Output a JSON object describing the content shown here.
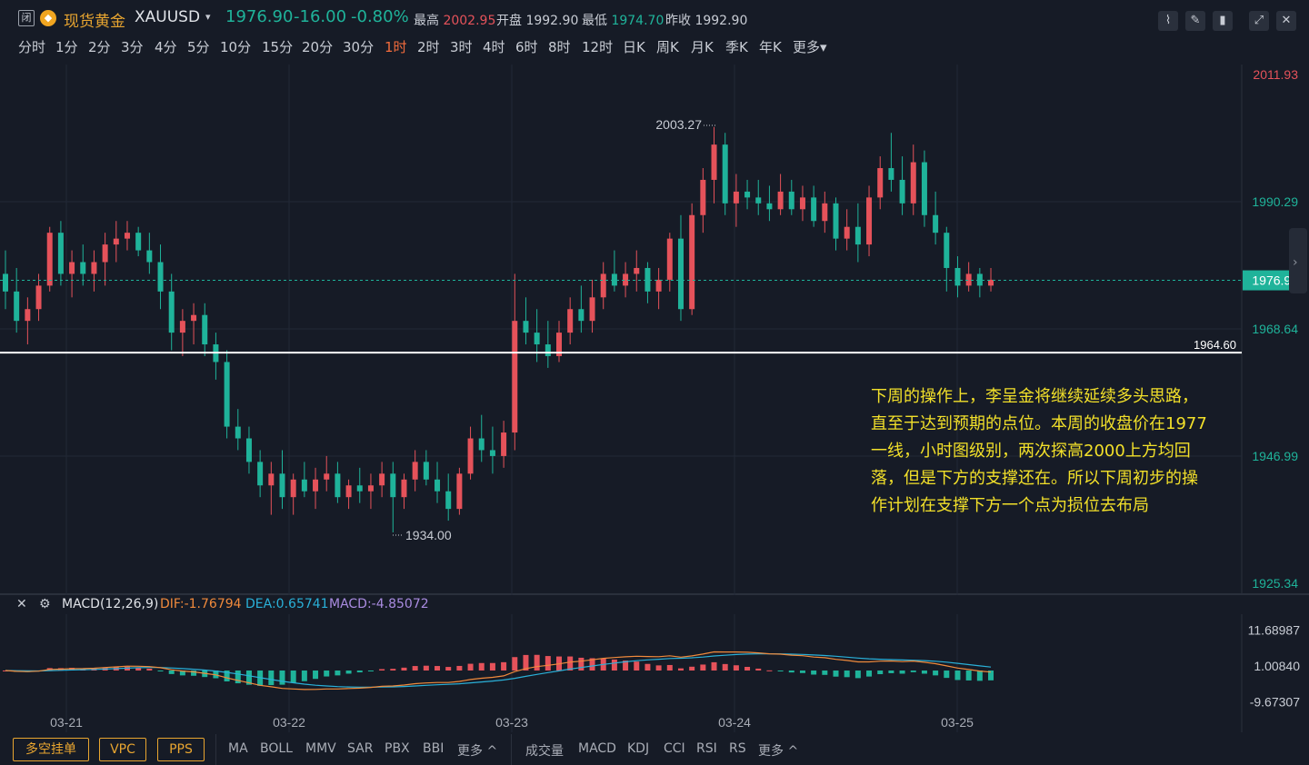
{
  "header": {
    "closed_tag": "闭",
    "symbol_name": "现货黄金",
    "symbol_code": "XAUUSD",
    "last_price": "1976.90",
    "change": "-16.00",
    "change_pct": "-0.80%",
    "high_label": "最高",
    "high_value": "2002.95",
    "open_label": "开盘",
    "open_value": "1992.90",
    "low_label": "最低",
    "low_value": "1974.70",
    "prev_close_label": "昨收",
    "prev_close_value": "1992.90"
  },
  "periods": [
    "分时",
    "1分",
    "2分",
    "3分",
    "4分",
    "5分",
    "10分",
    "15分",
    "20分",
    "30分",
    "1时",
    "2时",
    "3时",
    "4时",
    "6时",
    "8时",
    "12时",
    "日K",
    "周K",
    "月K",
    "季K",
    "年K",
    "更多"
  ],
  "active_period": "1时",
  "price_axis": [
    "2011.93",
    "1990.29",
    "1976.90",
    "1968.64",
    "1946.99",
    "1925.34"
  ],
  "support_label": "1964.60",
  "high_marker": "2003.27",
  "low_marker": "1934.00",
  "annotation": "下周的操作上，李呈金将继续延续多头思路，直至于达到预期的点位。本周的收盘价在1977一线，小时图级别，两次探高2000上方均回落，但是下方的支撑还在。所以下周初步的操作计划在支撑下方一个点为损位去布局",
  "macd": {
    "title": "MACD(12,26,9)",
    "dif": "DIF:-1.76794",
    "dea": "DEA:0.65741",
    "macd": "MACD:-4.85072",
    "axis": [
      "11.68987",
      "1.00840",
      "-9.67307"
    ]
  },
  "date_labels": [
    "03-21",
    "03-22",
    "03-23",
    "03-24",
    "03-25"
  ],
  "bottom": {
    "boxes": [
      "多空挂单",
      "VPC",
      "PPS"
    ],
    "main_indicators": [
      "MA",
      "BOLL",
      "MMV",
      "SAR",
      "PBX",
      "BBI",
      "更多 ^"
    ],
    "sub_indicators": [
      "成交量",
      "MACD",
      "KDJ",
      "CCI",
      "RSI",
      "RS",
      "更多 ^"
    ]
  },
  "colors": {
    "up": "#e5525a",
    "down": "#1fb39a",
    "accent": "#e8a530",
    "annotation": "#f2e02a",
    "dif_line": "#f08a3c",
    "dea_line": "#2ab0d8"
  },
  "chart_data": {
    "type": "candlestick",
    "ylim": [
      1925.34,
      2011.93
    ],
    "candles": [
      [
        1978,
        1982,
        1972,
        1975
      ],
      [
        1975,
        1979,
        1968,
        1970
      ],
      [
        1970,
        1974,
        1966,
        1972
      ],
      [
        1972,
        1978,
        1970,
        1976
      ],
      [
        1976,
        1986,
        1975,
        1985
      ],
      [
        1985,
        1987,
        1976,
        1978
      ],
      [
        1978,
        1982,
        1974,
        1980
      ],
      [
        1980,
        1983,
        1976,
        1978
      ],
      [
        1978,
        1982,
        1975,
        1980
      ],
      [
        1980,
        1985,
        1976,
        1983
      ],
      [
        1983,
        1987,
        1980,
        1984
      ],
      [
        1984,
        1987,
        1982,
        1985
      ],
      [
        1985,
        1986,
        1981,
        1982
      ],
      [
        1982,
        1985,
        1978,
        1980
      ],
      [
        1980,
        1983,
        1972,
        1975
      ],
      [
        1975,
        1978,
        1965,
        1968
      ],
      [
        1968,
        1972,
        1964,
        1970
      ],
      [
        1970,
        1973,
        1966,
        1971
      ],
      [
        1971,
        1973,
        1964,
        1966
      ],
      [
        1966,
        1968,
        1960,
        1963
      ],
      [
        1963,
        1965,
        1950,
        1952
      ],
      [
        1952,
        1955,
        1948,
        1950
      ],
      [
        1950,
        1952,
        1944,
        1946
      ],
      [
        1946,
        1948,
        1940,
        1942
      ],
      [
        1942,
        1946,
        1937,
        1944
      ],
      [
        1944,
        1948,
        1938,
        1940
      ],
      [
        1940,
        1944,
        1937,
        1943
      ],
      [
        1943,
        1946,
        1940,
        1941
      ],
      [
        1941,
        1945,
        1938,
        1943
      ],
      [
        1943,
        1947,
        1941,
        1944
      ],
      [
        1944,
        1946,
        1939,
        1940
      ],
      [
        1940,
        1943,
        1938,
        1942
      ],
      [
        1942,
        1945,
        1939,
        1941
      ],
      [
        1941,
        1944,
        1938,
        1942
      ],
      [
        1942,
        1946,
        1940,
        1944
      ],
      [
        1944,
        1946,
        1934,
        1940
      ],
      [
        1940,
        1944,
        1938,
        1943
      ],
      [
        1943,
        1948,
        1941,
        1946
      ],
      [
        1946,
        1948,
        1942,
        1943
      ],
      [
        1943,
        1946,
        1939,
        1941
      ],
      [
        1941,
        1944,
        1936,
        1938
      ],
      [
        1938,
        1945,
        1937,
        1944
      ],
      [
        1944,
        1952,
        1943,
        1950
      ],
      [
        1950,
        1954,
        1946,
        1948
      ],
      [
        1948,
        1952,
        1944,
        1947
      ],
      [
        1947,
        1953,
        1945,
        1951
      ],
      [
        1951,
        1978,
        1948,
        1970
      ],
      [
        1970,
        1974,
        1966,
        1968
      ],
      [
        1968,
        1972,
        1963,
        1966
      ],
      [
        1966,
        1970,
        1962,
        1964
      ],
      [
        1964,
        1970,
        1963,
        1968
      ],
      [
        1968,
        1974,
        1966,
        1972
      ],
      [
        1972,
        1976,
        1968,
        1970
      ],
      [
        1970,
        1977,
        1968,
        1974
      ],
      [
        1974,
        1980,
        1972,
        1978
      ],
      [
        1978,
        1982,
        1975,
        1976
      ],
      [
        1976,
        1980,
        1974,
        1978
      ],
      [
        1978,
        1982,
        1975,
        1979
      ],
      [
        1979,
        1980,
        1973,
        1975
      ],
      [
        1975,
        1979,
        1972,
        1977
      ],
      [
        1977,
        1985,
        1975,
        1984
      ],
      [
        1984,
        1988,
        1970,
        1972
      ],
      [
        1972,
        1990,
        1971,
        1988
      ],
      [
        1988,
        1996,
        1985,
        1994
      ],
      [
        1994,
        2003,
        1990,
        2000
      ],
      [
        2000,
        2002,
        1988,
        1990
      ],
      [
        1990,
        1995,
        1986,
        1992
      ],
      [
        1992,
        1994,
        1989,
        1991
      ],
      [
        1991,
        1994,
        1988,
        1990
      ],
      [
        1990,
        1993,
        1987,
        1989
      ],
      [
        1989,
        1995,
        1988,
        1992
      ],
      [
        1992,
        1994,
        1988,
        1989
      ],
      [
        1989,
        1993,
        1987,
        1991
      ],
      [
        1991,
        1993,
        1986,
        1987
      ],
      [
        1987,
        1992,
        1985,
        1990
      ],
      [
        1990,
        1991,
        1982,
        1984
      ],
      [
        1984,
        1989,
        1982,
        1986
      ],
      [
        1986,
        1990,
        1980,
        1983
      ],
      [
        1983,
        1993,
        1981,
        1991
      ],
      [
        1991,
        1998,
        1989,
        1996
      ],
      [
        1996,
        2002,
        1992,
        1994
      ],
      [
        1994,
        1998,
        1988,
        1990
      ],
      [
        1990,
        2000,
        1988,
        1997
      ],
      [
        1997,
        1999,
        1986,
        1988
      ],
      [
        1988,
        1992,
        1983,
        1985
      ],
      [
        1985,
        1986,
        1975,
        1979
      ],
      [
        1979,
        1981,
        1974,
        1976
      ],
      [
        1976,
        1980,
        1975,
        1978
      ],
      [
        1978,
        1979,
        1974,
        1976
      ],
      [
        1976,
        1979,
        1975,
        1977
      ]
    ],
    "support_line": 1964.6
  }
}
